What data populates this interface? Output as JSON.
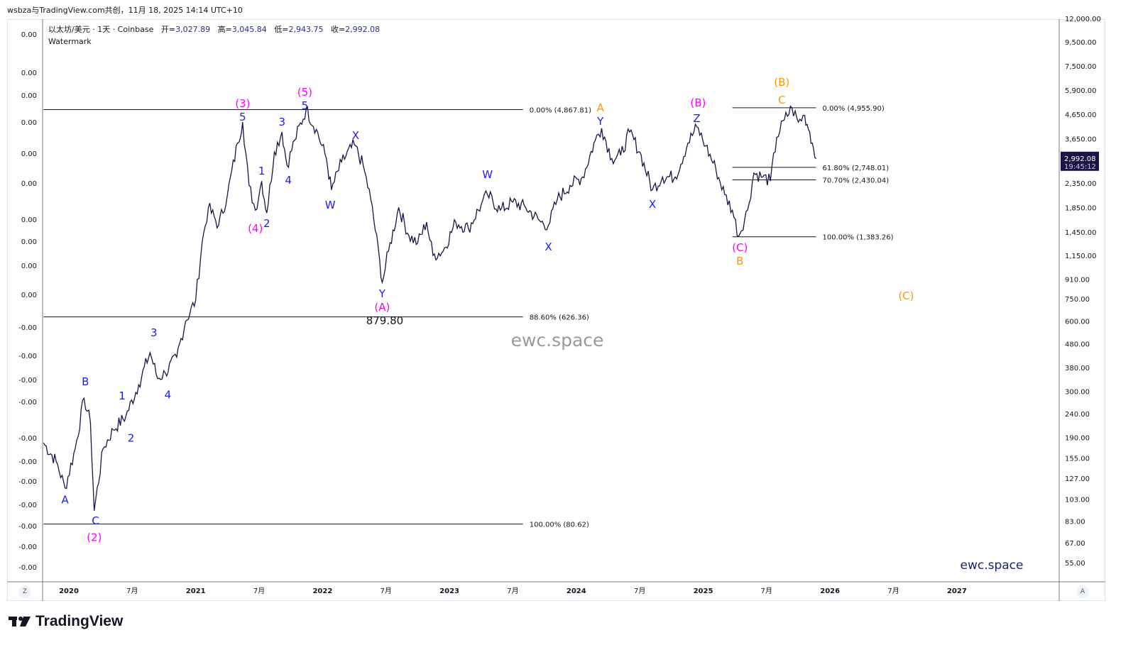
{
  "caption": "wsbza与TradingView.com共创，11月 18, 2025 14:14 UTC+10",
  "legend": {
    "symbol": "以太坊/美元 · 1天 · Coinbase",
    "open_label": "开=",
    "open": "3,027.89",
    "high_label": "高=",
    "high": "3,045.84",
    "low_label": "低=",
    "low": "2,943.75",
    "close_label": "收=",
    "close": "2,992.08",
    "indicator": "Watermark"
  },
  "colors": {
    "price_line": "#1a1446",
    "wave_blue": "#1a1aff",
    "wave_magenta": "#ff00ff",
    "wave_orange": "#ff9800",
    "last_price_bg": "#1a1446",
    "brand": "#1a237e"
  },
  "left_axis_buttons": {
    "z": "Z",
    "a": "A"
  },
  "watermark_center": "ewc.space",
  "watermark_corner": "ewc.space",
  "footer_logo": "TradingView",
  "last_price": {
    "value": "2,992.08",
    "countdown": "19:45:12"
  },
  "chart_data": {
    "type": "line",
    "title": "以太坊/美元 · 1天 · Coinbase",
    "scale": "log",
    "ylim": [
      50,
      12500
    ],
    "xlim": [
      2019.8,
      2027.8
    ],
    "y_ticks": [
      "12,000.00",
      "9,500.00",
      "7,500.00",
      "5,900.00",
      "4,650.00",
      "3,650.00",
      "2,350.00",
      "1,850.00",
      "1,450.00",
      "1,150.00",
      "910.00",
      "750.00",
      "600.00",
      "480.00",
      "380.00",
      "300.00",
      "240.00",
      "190.00",
      "155.00",
      "127.00",
      "103.00",
      "83.00",
      "67.00",
      "55.00"
    ],
    "y_tick_values": [
      12000,
      9500,
      7500,
      5900,
      4650,
      3650,
      2350,
      1850,
      1450,
      1150,
      910,
      750,
      600,
      480,
      380,
      300,
      240,
      190,
      155,
      127,
      103,
      83,
      67,
      55
    ],
    "left_ticks": [
      "0.00",
      "0.00",
      "0.00",
      "0.00",
      "0.00",
      "0.00",
      "0.00",
      "0.00",
      "0.00",
      "0.00",
      "-0.00",
      "-0.00",
      "-0.00",
      "-0.00",
      "-0.00",
      "-0.00",
      "-0.00",
      "-0.00",
      "-0.00",
      "-0.00",
      "-0.00"
    ],
    "x_ticks": [
      {
        "label": "2020",
        "t": 2020.0,
        "bold": true
      },
      {
        "label": "7月",
        "t": 2020.5
      },
      {
        "label": "2021",
        "t": 2021.0,
        "bold": true
      },
      {
        "label": "7月",
        "t": 2021.5
      },
      {
        "label": "2022",
        "t": 2022.0,
        "bold": true
      },
      {
        "label": "7月",
        "t": 2022.5
      },
      {
        "label": "2023",
        "t": 2023.0,
        "bold": true
      },
      {
        "label": "7月",
        "t": 2023.5
      },
      {
        "label": "2024",
        "t": 2024.0,
        "bold": true
      },
      {
        "label": "7月",
        "t": 2024.5
      },
      {
        "label": "2025",
        "t": 2025.0,
        "bold": true
      },
      {
        "label": "7月",
        "t": 2025.5
      },
      {
        "label": "2026",
        "t": 2026.0,
        "bold": true
      },
      {
        "label": "7月",
        "t": 2026.5
      },
      {
        "label": "2027",
        "t": 2027.0,
        "bold": true
      }
    ],
    "series": [
      {
        "name": "ETH/USD",
        "points": [
          [
            2019.8,
            180
          ],
          [
            2019.9,
            150
          ],
          [
            2019.97,
            115
          ],
          [
            2020.05,
            170
          ],
          [
            2020.12,
            280
          ],
          [
            2020.17,
            220
          ],
          [
            2020.2,
            92
          ],
          [
            2020.27,
            170
          ],
          [
            2020.35,
            205
          ],
          [
            2020.45,
            235
          ],
          [
            2020.55,
            320
          ],
          [
            2020.64,
            440
          ],
          [
            2020.7,
            340
          ],
          [
            2020.76,
            360
          ],
          [
            2020.85,
            420
          ],
          [
            2020.92,
            600
          ],
          [
            2021.0,
            740
          ],
          [
            2021.05,
            1300
          ],
          [
            2021.1,
            1850
          ],
          [
            2021.18,
            1550
          ],
          [
            2021.25,
            2100
          ],
          [
            2021.33,
            3500
          ],
          [
            2021.37,
            4300
          ],
          [
            2021.42,
            2300
          ],
          [
            2021.47,
            1800
          ],
          [
            2021.52,
            2400
          ],
          [
            2021.56,
            1750
          ],
          [
            2021.62,
            3200
          ],
          [
            2021.68,
            3900
          ],
          [
            2021.72,
            2800
          ],
          [
            2021.78,
            3600
          ],
          [
            2021.87,
            4870
          ],
          [
            2021.95,
            4000
          ],
          [
            2022.03,
            3000
          ],
          [
            2022.07,
            2200
          ],
          [
            2022.15,
            2900
          ],
          [
            2022.25,
            3450
          ],
          [
            2022.32,
            2800
          ],
          [
            2022.38,
            2000
          ],
          [
            2022.45,
            1100
          ],
          [
            2022.47,
            880
          ],
          [
            2022.52,
            1200
          ],
          [
            2022.6,
            1850
          ],
          [
            2022.68,
            1400
          ],
          [
            2022.75,
            1300
          ],
          [
            2022.82,
            1600
          ],
          [
            2022.87,
            1150
          ],
          [
            2022.95,
            1200
          ],
          [
            2023.05,
            1600
          ],
          [
            2023.15,
            1500
          ],
          [
            2023.25,
            1900
          ],
          [
            2023.3,
            2100
          ],
          [
            2023.4,
            1800
          ],
          [
            2023.5,
            1950
          ],
          [
            2023.6,
            1850
          ],
          [
            2023.72,
            1600
          ],
          [
            2023.78,
            1550
          ],
          [
            2023.85,
            2000
          ],
          [
            2023.95,
            2300
          ],
          [
            2024.05,
            2500
          ],
          [
            2024.15,
            3600
          ],
          [
            2024.2,
            4050
          ],
          [
            2024.28,
            3000
          ],
          [
            2024.35,
            3100
          ],
          [
            2024.42,
            3900
          ],
          [
            2024.5,
            3200
          ],
          [
            2024.6,
            2200
          ],
          [
            2024.68,
            2500
          ],
          [
            2024.78,
            2500
          ],
          [
            2024.88,
            3500
          ],
          [
            2024.95,
            4100
          ],
          [
            2025.02,
            3400
          ],
          [
            2025.1,
            2700
          ],
          [
            2025.17,
            2100
          ],
          [
            2025.23,
            1800
          ],
          [
            2025.28,
            1390
          ],
          [
            2025.35,
            1800
          ],
          [
            2025.4,
            2600
          ],
          [
            2025.47,
            2500
          ],
          [
            2025.53,
            2400
          ],
          [
            2025.58,
            3700
          ],
          [
            2025.64,
            4400
          ],
          [
            2025.7,
            4950
          ],
          [
            2025.75,
            4300
          ],
          [
            2025.8,
            4600
          ],
          [
            2025.84,
            3900
          ],
          [
            2025.87,
            3300
          ],
          [
            2025.89,
            2992
          ]
        ]
      }
    ],
    "fib_retracements": [
      {
        "start": 2019.8,
        "end": 2023.58,
        "levels": [
          {
            "label": "0.00% (4,867.81)",
            "price": 4867.81
          },
          {
            "label": "88.60% (626.36)",
            "price": 626.36
          },
          {
            "label": "100.00% (80.62)",
            "price": 80.62
          }
        ]
      },
      {
        "start": 2025.23,
        "end": 2025.89,
        "levels": [
          {
            "label": "0.00% (4,955.90)",
            "price": 4955.9
          },
          {
            "label": "61.80% (2,748.01)",
            "price": 2748.01
          },
          {
            "label": "70.70% (2,430.04)",
            "price": 2430.04
          },
          {
            "label": "100.00% (1,383.26)",
            "price": 1383.26
          }
        ]
      }
    ],
    "annotations": [
      {
        "text": "A",
        "t": 2019.97,
        "p": 103,
        "c": "blue"
      },
      {
        "text": "B",
        "t": 2020.13,
        "p": 332,
        "c": "blue"
      },
      {
        "text": "C",
        "t": 2020.21,
        "p": 84,
        "c": "blue"
      },
      {
        "text": "(2)",
        "t": 2020.2,
        "p": 71,
        "c": "magenta"
      },
      {
        "text": "1",
        "t": 2020.42,
        "p": 288,
        "c": "blue"
      },
      {
        "text": "2",
        "t": 2020.49,
        "p": 190,
        "c": "blue"
      },
      {
        "text": "3",
        "t": 2020.67,
        "p": 538,
        "c": "blue"
      },
      {
        "text": "4",
        "t": 2020.78,
        "p": 292,
        "c": "blue"
      },
      {
        "text": "(3)",
        "t": 2021.37,
        "p": 5200,
        "c": "magenta"
      },
      {
        "text": "5",
        "t": 2021.37,
        "p": 4660,
        "c": "blue"
      },
      {
        "text": "1",
        "t": 2021.52,
        "p": 2667,
        "c": "blue"
      },
      {
        "text": "(4)",
        "t": 2021.47,
        "p": 1510,
        "c": "magenta"
      },
      {
        "text": "2",
        "t": 2021.56,
        "p": 1588,
        "c": "blue"
      },
      {
        "text": "3",
        "t": 2021.68,
        "p": 4335,
        "c": "blue"
      },
      {
        "text": "4",
        "t": 2021.73,
        "p": 2438,
        "c": "blue"
      },
      {
        "text": "(5)",
        "t": 2021.86,
        "p": 5820,
        "c": "magenta"
      },
      {
        "text": "5",
        "t": 2021.86,
        "p": 5270,
        "c": "blue"
      },
      {
        "text": "W",
        "t": 2022.06,
        "p": 1905,
        "c": "blue"
      },
      {
        "text": "X",
        "t": 2022.26,
        "p": 3793,
        "c": "blue"
      },
      {
        "text": "Y",
        "t": 2022.47,
        "p": 792,
        "c": "blue"
      },
      {
        "text": "(A)",
        "t": 2022.47,
        "p": 693,
        "c": "magenta"
      },
      {
        "text": "879.80",
        "t": 2022.49,
        "p": 623,
        "c": "black"
      },
      {
        "text": "W",
        "t": 2023.3,
        "p": 2576,
        "c": "blue"
      },
      {
        "text": "X",
        "t": 2023.78,
        "p": 1259,
        "c": "blue"
      },
      {
        "text": "A",
        "t": 2024.19,
        "p": 4980,
        "c": "orange"
      },
      {
        "text": "Y",
        "t": 2024.19,
        "p": 4487,
        "c": "blue"
      },
      {
        "text": "X",
        "t": 2024.6,
        "p": 1919,
        "c": "blue"
      },
      {
        "text": "(B)",
        "t": 2024.96,
        "p": 5236,
        "c": "magenta"
      },
      {
        "text": "Z",
        "t": 2024.95,
        "p": 4487,
        "c": "blue"
      },
      {
        "text": "(C)",
        "t": 2025.29,
        "p": 1250,
        "c": "magenta"
      },
      {
        "text": "B",
        "t": 2025.29,
        "p": 1117,
        "c": "orange"
      },
      {
        "text": "(B)",
        "t": 2025.62,
        "p": 6412,
        "c": "orange"
      },
      {
        "text": "C",
        "t": 2025.62,
        "p": 5380,
        "c": "orange"
      },
      {
        "text": "(C)",
        "t": 2026.6,
        "p": 776,
        "c": "orange"
      }
    ]
  }
}
